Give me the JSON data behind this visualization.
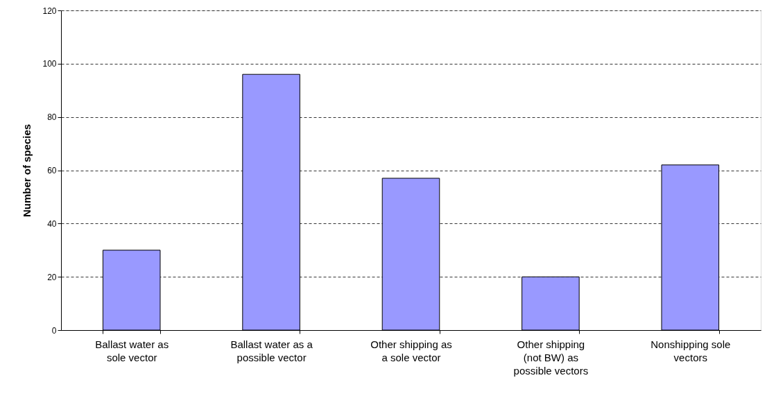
{
  "chart_data": {
    "type": "bar",
    "ylabel": "Number of species",
    "categories": [
      "Ballast water as sole vector",
      "Ballast water as a possible vector",
      "Other shipping as a sole vector",
      "Other shipping (not BW) as possible vectors",
      "Nonshipping sole vectors"
    ],
    "values": [
      30,
      96,
      57,
      20,
      62
    ],
    "color": "#9999ff",
    "ylim": [
      0,
      120
    ],
    "yticks": [
      0,
      20,
      40,
      60,
      80,
      100,
      120
    ],
    "grid": "y"
  }
}
